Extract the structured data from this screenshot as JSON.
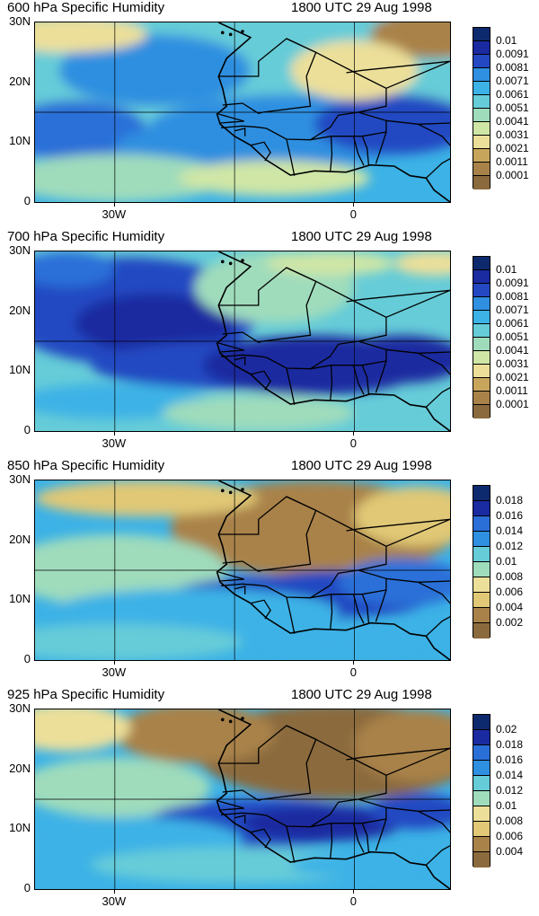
{
  "colors": {
    "scale_low_to_high": [
      "#8b6b3e",
      "#a9824a",
      "#c7a65c",
      "#e0c876",
      "#ecdf9a",
      "#cfe6a6",
      "#9fdcbc",
      "#66ccd8",
      "#3cb2e6",
      "#2f8fe0",
      "#2a6fd8",
      "#2448c2",
      "#1a2aa0",
      "#0d2a6e"
    ]
  },
  "axes": {
    "y_labels": [
      "30N",
      "20N",
      "10N",
      "0"
    ],
    "x_labels": [
      "30W",
      "0"
    ]
  },
  "panels": [
    {
      "title_left": "600 hPa Specific Humidity",
      "title_right": "1800 UTC 29 Aug 1998",
      "legend_labels": [
        "0.01",
        "0.0091",
        "0.0081",
        "0.0071",
        "0.0061",
        "0.0051",
        "0.0041",
        "0.0031",
        "0.0021",
        "0.0011",
        "0.0001"
      ]
    },
    {
      "title_left": "700 hPa Specific Humidity",
      "title_right": "1800 UTC 29 Aug 1998",
      "legend_labels": [
        "0.01",
        "0.0091",
        "0.0081",
        "0.0071",
        "0.0061",
        "0.0051",
        "0.0041",
        "0.0031",
        "0.0021",
        "0.0011",
        "0.0001"
      ]
    },
    {
      "title_left": "850 hPa Specific Humidity",
      "title_right": "1800 UTC 29 Aug 1998",
      "legend_labels": [
        "0.018",
        "0.016",
        "0.014",
        "0.012",
        "0.01",
        "0.008",
        "0.006",
        "0.004",
        "0.002"
      ]
    },
    {
      "title_left": "925 hPa Specific Humidity",
      "title_right": "1800 UTC 29 Aug 1998",
      "legend_labels": [
        "0.02",
        "0.018",
        "0.016",
        "0.014",
        "0.012",
        "0.01",
        "0.008",
        "0.006",
        "0.004"
      ]
    }
  ]
}
